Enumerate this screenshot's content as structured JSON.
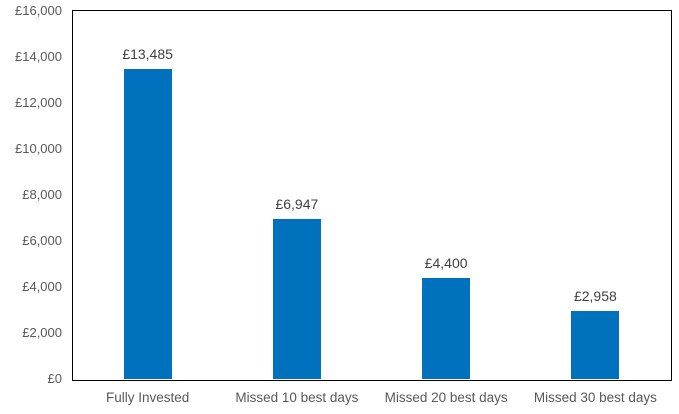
{
  "chart_data": {
    "type": "bar",
    "title": "",
    "categories": [
      "Fully Invested",
      "Missed 10 best days",
      "Missed 20 best days",
      "Missed 30 best days"
    ],
    "values": [
      13485,
      6947,
      4400,
      2958
    ],
    "data_labels": [
      "£13,485",
      "£6,947",
      "£4,400",
      "£2,958"
    ],
    "y_ticks": [
      {
        "label": "£16,000",
        "value": 16000
      },
      {
        "label": "£14,000",
        "value": 14000
      },
      {
        "label": "£12,000",
        "value": 12000
      },
      {
        "label": "£10,000",
        "value": 10000
      },
      {
        "label": "£8,000",
        "value": 8000
      },
      {
        "label": "£6,000",
        "value": 6000
      },
      {
        "label": "£4,000",
        "value": 4000
      },
      {
        "label": "£2,000",
        "value": 2000
      },
      {
        "label": "£0",
        "value": 0
      }
    ],
    "ylim": [
      0,
      16000
    ],
    "xlabel": "",
    "ylabel": "",
    "grid": false,
    "legend": "none",
    "colors": {
      "bar": "#0071BC",
      "axis_line": "#000000",
      "tick_text": "#595959",
      "data_label_text": "#404040",
      "background": "#ffffff"
    }
  }
}
